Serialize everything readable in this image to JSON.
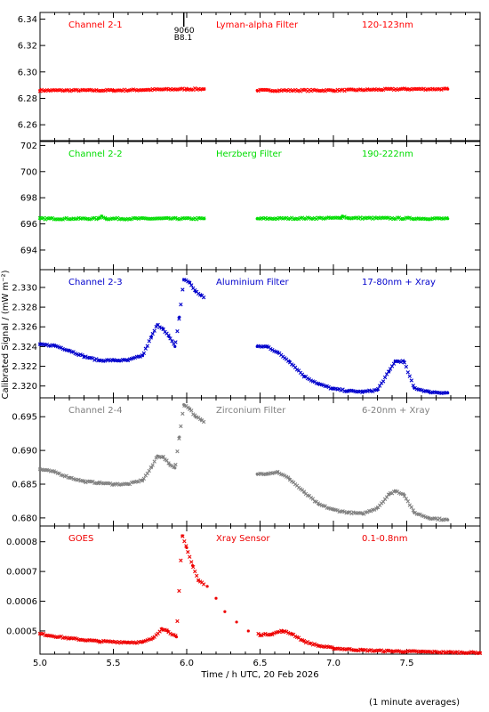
{
  "chart_data": {
    "type": "scatter",
    "xlabel": "Time / h UTC, 20 Feb 2026",
    "ylabel": "Calibrated Signal / (mW m⁻²)",
    "footnote": "(1 minute averages)",
    "xlim": [
      5.0,
      8.0
    ],
    "xticks": [
      "5.0",
      "5.5",
      "6.0",
      "6.5",
      "7.0",
      "7.5"
    ],
    "gaps": [
      [
        6.12,
        6.48
      ]
    ],
    "marker_annotation": {
      "x": 5.98,
      "lines": [
        "9060",
        "B8.1"
      ]
    },
    "panels": [
      {
        "channel": "Channel 2-1",
        "filter": "Lyman-alpha Filter",
        "band": "120-123nm",
        "color": "#ff0000",
        "ylim": [
          6.248,
          6.345
        ],
        "yticks": [
          6.26,
          6.28,
          6.3,
          6.32,
          6.34
        ],
        "ytick_labels": [
          "6.26",
          "6.28",
          "6.30",
          "6.32",
          "6.34"
        ],
        "points": [
          [
            5.0,
            6.286
          ],
          [
            5.5,
            6.286
          ],
          [
            6.0,
            6.287
          ],
          [
            6.12,
            6.287
          ],
          [
            6.48,
            6.286
          ],
          [
            7.0,
            6.286
          ],
          [
            7.5,
            6.287
          ],
          [
            7.78,
            6.287
          ]
        ]
      },
      {
        "channel": "Channel 2-2",
        "filter": "Herzberg Filter",
        "band": "190-222nm",
        "color": "#00dd00",
        "ylim": [
          692.5,
          702.3
        ],
        "yticks": [
          694,
          696,
          698,
          700,
          702
        ],
        "ytick_labels": [
          "694",
          "696",
          "698",
          "700",
          "702"
        ],
        "points": [
          [
            5.0,
            696.4
          ],
          [
            5.4,
            696.4
          ],
          [
            5.42,
            696.6
          ],
          [
            5.45,
            696.4
          ],
          [
            6.12,
            696.4
          ],
          [
            6.48,
            696.4
          ],
          [
            7.05,
            696.45
          ],
          [
            7.06,
            696.6
          ],
          [
            7.1,
            696.45
          ],
          [
            7.78,
            696.4
          ]
        ]
      },
      {
        "channel": "Channel 2-3",
        "filter": "Aluminium Filter",
        "band": "17-80nm + Xray",
        "color": "#0000cc",
        "ylim": [
          2.3188,
          2.3318
        ],
        "yticks": [
          2.32,
          2.322,
          2.324,
          2.326,
          2.328,
          2.33
        ],
        "ytick_labels": [
          "2.320",
          "2.322",
          "2.324",
          "2.326",
          "2.328",
          "2.330"
        ],
        "points": [
          [
            5.0,
            2.3242
          ],
          [
            5.1,
            2.3241
          ],
          [
            5.2,
            2.3236
          ],
          [
            5.3,
            2.323
          ],
          [
            5.4,
            2.3226
          ],
          [
            5.5,
            2.3226
          ],
          [
            5.6,
            2.3226
          ],
          [
            5.7,
            2.3231
          ],
          [
            5.76,
            2.325
          ],
          [
            5.8,
            2.3262
          ],
          [
            5.84,
            2.3258
          ],
          [
            5.88,
            2.325
          ],
          [
            5.92,
            2.324
          ],
          [
            5.95,
            2.327
          ],
          [
            5.98,
            2.3308
          ],
          [
            6.02,
            2.3305
          ],
          [
            6.06,
            2.3296
          ],
          [
            6.1,
            2.3292
          ],
          [
            6.48,
            2.324
          ],
          [
            6.55,
            2.324
          ],
          [
            6.62,
            2.3234
          ],
          [
            6.7,
            2.3225
          ],
          [
            6.8,
            2.321
          ],
          [
            6.9,
            2.3202
          ],
          [
            7.0,
            2.3197
          ],
          [
            7.1,
            2.3195
          ],
          [
            7.2,
            2.3194
          ],
          [
            7.3,
            2.3196
          ],
          [
            7.38,
            2.3215
          ],
          [
            7.42,
            2.3225
          ],
          [
            7.48,
            2.3225
          ],
          [
            7.55,
            2.3198
          ],
          [
            7.65,
            2.3194
          ],
          [
            7.78,
            2.3193
          ]
        ]
      },
      {
        "channel": "Channel 2-4",
        "filter": "Zirconium Filter",
        "band": "6-20nm + Xray",
        "color": "#808080",
        "ylim": [
          0.6788,
          0.6978
        ],
        "yticks": [
          0.68,
          0.685,
          0.69,
          0.695
        ],
        "ytick_labels": [
          "0.680",
          "0.685",
          "0.690",
          "0.695"
        ],
        "points": [
          [
            5.0,
            0.6872
          ],
          [
            5.1,
            0.6868
          ],
          [
            5.2,
            0.686
          ],
          [
            5.3,
            0.6854
          ],
          [
            5.4,
            0.6852
          ],
          [
            5.5,
            0.685
          ],
          [
            5.6,
            0.685
          ],
          [
            5.7,
            0.6856
          ],
          [
            5.76,
            0.6875
          ],
          [
            5.8,
            0.6892
          ],
          [
            5.84,
            0.689
          ],
          [
            5.88,
            0.688
          ],
          [
            5.92,
            0.6874
          ],
          [
            5.95,
            0.692
          ],
          [
            5.98,
            0.6968
          ],
          [
            6.02,
            0.6962
          ],
          [
            6.06,
            0.695
          ],
          [
            6.1,
            0.6945
          ],
          [
            6.48,
            0.6865
          ],
          [
            6.55,
            0.6866
          ],
          [
            6.62,
            0.6868
          ],
          [
            6.7,
            0.6858
          ],
          [
            6.8,
            0.6838
          ],
          [
            6.9,
            0.682
          ],
          [
            7.0,
            0.6812
          ],
          [
            7.1,
            0.6808
          ],
          [
            7.2,
            0.6806
          ],
          [
            7.3,
            0.6815
          ],
          [
            7.38,
            0.6835
          ],
          [
            7.42,
            0.684
          ],
          [
            7.48,
            0.6835
          ],
          [
            7.55,
            0.6808
          ],
          [
            7.65,
            0.68
          ],
          [
            7.78,
            0.6797
          ]
        ]
      },
      {
        "channel": "GOES",
        "filter": "Xray Sensor",
        "band": "0.1-0.8nm",
        "color": "#ee0000",
        "ylim": [
          0.000422,
          0.000853
        ],
        "yticks": [
          0.0005,
          0.0006,
          0.0007,
          0.0008
        ],
        "ytick_labels": [
          "0.0005",
          "0.0006",
          "0.0007",
          "0.0008"
        ],
        "points": [
          [
            5.0,
            0.00049
          ],
          [
            5.2,
            0.000475
          ],
          [
            5.4,
            0.000465
          ],
          [
            5.6,
            0.000462
          ],
          [
            5.7,
            0.000462
          ],
          [
            5.77,
            0.000475
          ],
          [
            5.83,
            0.000508
          ],
          [
            5.87,
            0.0005
          ],
          [
            5.93,
            0.00048
          ],
          [
            5.97,
            0.00082
          ],
          [
            6.0,
            0.00078
          ],
          [
            6.04,
            0.00072
          ],
          [
            6.08,
            0.00067
          ],
          [
            6.14,
            0.00065
          ],
          [
            6.2,
            0.00061
          ],
          [
            6.26,
            0.000565
          ],
          [
            6.34,
            0.00053
          ],
          [
            6.42,
            0.0005
          ],
          [
            6.5,
            0.000487
          ],
          [
            6.58,
            0.00049
          ],
          [
            6.65,
            0.0005
          ],
          [
            6.72,
            0.00049
          ],
          [
            6.8,
            0.000465
          ],
          [
            6.9,
            0.00045
          ],
          [
            7.0,
            0.000442
          ],
          [
            7.2,
            0.000435
          ],
          [
            7.4,
            0.000432
          ],
          [
            7.6,
            0.00043
          ],
          [
            7.8,
            0.000428
          ],
          [
            8.0,
            0.000427
          ]
        ]
      }
    ]
  }
}
